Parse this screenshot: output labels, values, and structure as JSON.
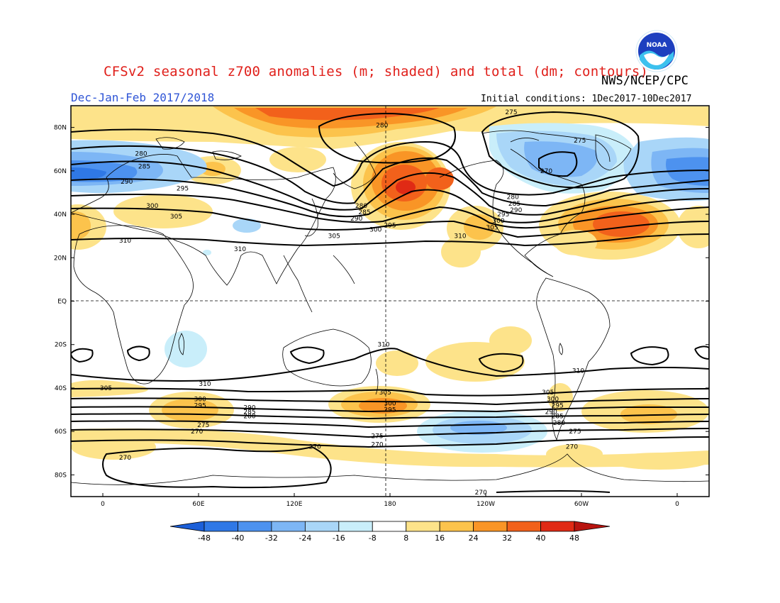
{
  "header": {
    "title": "CFSv2 seasonal z700 anomalies (m; shaded) and total (dm; contours)",
    "agency": "NWS/NCEP/CPC",
    "period": "Dec-Jan-Feb 2017/2018",
    "initial_conditions": "Initial conditions: 1Dec2017-10Dec2017",
    "logo_text": "NOAA"
  },
  "map": {
    "lat_labels": [
      "80N",
      "60N",
      "40N",
      "20N",
      "EQ",
      "20S",
      "40S",
      "60S",
      "80S"
    ],
    "lon_labels": [
      "0",
      "60E",
      "120E",
      "180",
      "120W",
      "60W",
      "0"
    ],
    "lon_range": [
      -20,
      380
    ],
    "lat_range": [
      -90,
      90
    ]
  },
  "colorbar": {
    "ticks": [
      "-48",
      "-40",
      "-32",
      "-24",
      "-16",
      "-8",
      "8",
      "16",
      "24",
      "32",
      "40",
      "48"
    ],
    "colors": [
      "#1c5fd8",
      "#2f78e6",
      "#4d92ef",
      "#7db6f5",
      "#a9d6f8",
      "#c9eefa",
      "#ffffff",
      "#fde38a",
      "#fcc34c",
      "#f99526",
      "#f2611b",
      "#e02a15",
      "#b8140f"
    ]
  },
  "contour_labels": [
    {
      "text": "280",
      "lon": 175,
      "lat": 81
    },
    {
      "text": "275",
      "lon": 256,
      "lat": 87
    },
    {
      "text": "275",
      "lon": 299,
      "lat": 74
    },
    {
      "text": "270",
      "lon": 278,
      "lat": 60
    },
    {
      "text": "280",
      "lon": 24,
      "lat": 68
    },
    {
      "text": "285",
      "lon": 26,
      "lat": 62
    },
    {
      "text": "290",
      "lon": 15,
      "lat": 55
    },
    {
      "text": "295",
      "lon": 50,
      "lat": 52
    },
    {
      "text": "300",
      "lon": 31,
      "lat": 44
    },
    {
      "text": "305",
      "lon": 46,
      "lat": 39
    },
    {
      "text": "310",
      "lon": 14,
      "lat": 28
    },
    {
      "text": "310",
      "lon": 86,
      "lat": 24
    },
    {
      "text": "280",
      "lon": 162,
      "lat": 44
    },
    {
      "text": "285",
      "lon": 164,
      "lat": 41
    },
    {
      "text": "290",
      "lon": 159,
      "lat": 38
    },
    {
      "text": "295",
      "lon": 180,
      "lat": 35
    },
    {
      "text": "300",
      "lon": 171,
      "lat": 33
    },
    {
      "text": "305",
      "lon": 145,
      "lat": 30
    },
    {
      "text": "280",
      "lon": 257,
      "lat": 48
    },
    {
      "text": "285",
      "lon": 258,
      "lat": 45
    },
    {
      "text": "290",
      "lon": 259,
      "lat": 42
    },
    {
      "text": "295",
      "lon": 251,
      "lat": 40
    },
    {
      "text": "300",
      "lon": 248,
      "lat": 37
    },
    {
      "text": "305",
      "lon": 244,
      "lat": 34
    },
    {
      "text": "310",
      "lon": 224,
      "lat": 30
    },
    {
      "text": "310",
      "lon": 176,
      "lat": -20
    },
    {
      "text": "310",
      "lon": 298,
      "lat": -32
    },
    {
      "text": "310",
      "lon": 64,
      "lat": -38
    },
    {
      "text": "305",
      "lon": 2,
      "lat": -40
    },
    {
      "text": "300",
      "lon": 61,
      "lat": -45
    },
    {
      "text": "295",
      "lon": 61,
      "lat": -48
    },
    {
      "text": "290",
      "lon": 92,
      "lat": -49
    },
    {
      "text": "285",
      "lon": 92,
      "lat": -51
    },
    {
      "text": "280",
      "lon": 92,
      "lat": -53
    },
    {
      "text": "275",
      "lon": 63,
      "lat": -57
    },
    {
      "text": "270",
      "lon": 59,
      "lat": -60
    },
    {
      "text": "305",
      "lon": 177,
      "lat": -42
    },
    {
      "text": "300",
      "lon": 180,
      "lat": -47
    },
    {
      "text": "295",
      "lon": 180,
      "lat": -50
    },
    {
      "text": "275",
      "lon": 172,
      "lat": -62
    },
    {
      "text": "270",
      "lon": 172,
      "lat": -66
    },
    {
      "text": "270",
      "lon": 133,
      "lat": -67
    },
    {
      "text": "270",
      "lon": 14,
      "lat": -72
    },
    {
      "text": "305",
      "lon": 279,
      "lat": -42
    },
    {
      "text": "300",
      "lon": 282,
      "lat": -45
    },
    {
      "text": "295",
      "lon": 285,
      "lat": -48
    },
    {
      "text": "290",
      "lon": 281,
      "lat": -51
    },
    {
      "text": "285",
      "lon": 285,
      "lat": -53
    },
    {
      "text": "280",
      "lon": 286,
      "lat": -56
    },
    {
      "text": "275",
      "lon": 296,
      "lat": -60
    },
    {
      "text": "270",
      "lon": 294,
      "lat": -67
    },
    {
      "text": "270",
      "lon": 237,
      "lat": -88
    }
  ]
}
